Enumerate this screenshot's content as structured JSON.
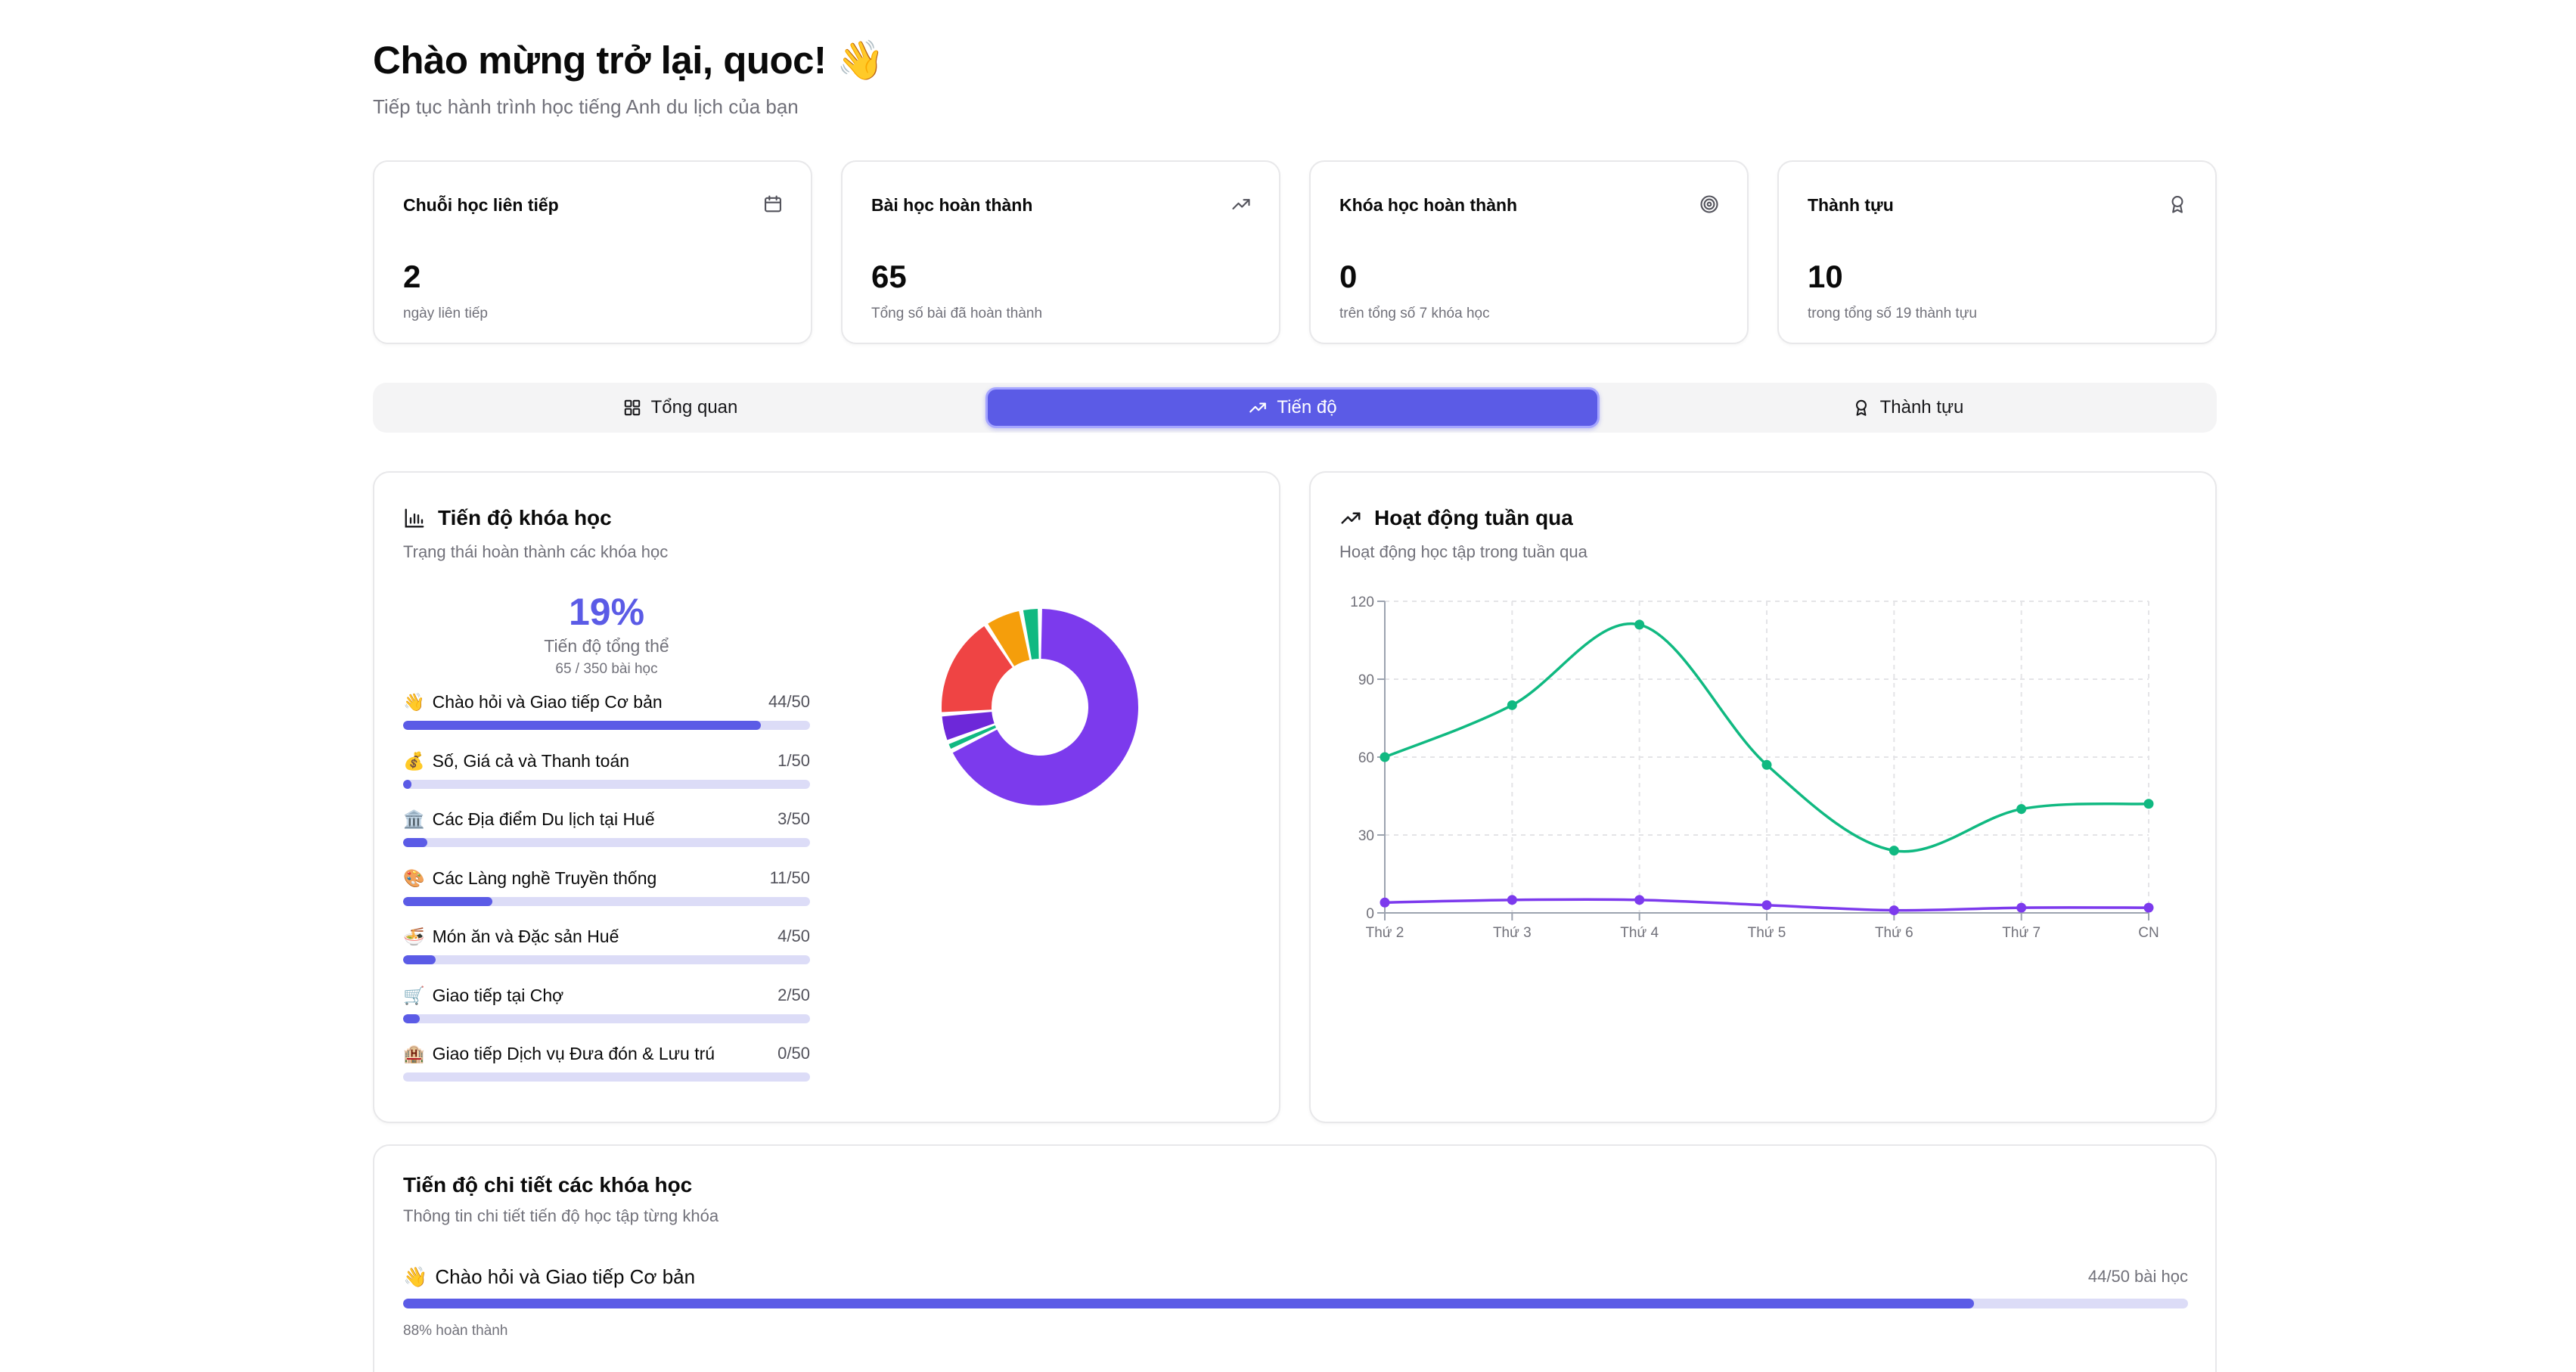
{
  "header": {
    "title": "Chào mừng trở lại, quoc! 👋",
    "subtitle": "Tiếp tục hành trình học tiếng Anh du lịch của bạn"
  },
  "stats": [
    {
      "title": "Chuỗi học liên tiếp",
      "icon": "calendar-icon",
      "value": "2",
      "note": "ngày liên tiếp"
    },
    {
      "title": "Bài học hoàn thành",
      "icon": "trending-up-icon",
      "value": "65",
      "note": "Tổng số bài đã hoàn thành"
    },
    {
      "title": "Khóa học hoàn thành",
      "icon": "target-icon",
      "value": "0",
      "note": "trên tổng số 7 khóa học"
    },
    {
      "title": "Thành tựu",
      "icon": "award-icon",
      "value": "10",
      "note": "trong tổng số 19 thành tựu"
    }
  ],
  "tabs": [
    {
      "label": "Tổng quan",
      "icon": "grid-icon",
      "active": false
    },
    {
      "label": "Tiến độ",
      "icon": "trending-up-icon",
      "active": true
    },
    {
      "label": "Thành tựu",
      "icon": "award-icon",
      "active": false
    }
  ],
  "course_progress": {
    "title": "Tiến độ khóa học",
    "subtitle": "Trạng thái hoàn thành các khóa học",
    "overall_pct": "19%",
    "overall_label": "Tiến độ tổng thể",
    "overall_count": "65 / 350 bài học",
    "courses": [
      {
        "emoji": "👋",
        "name": "Chào hỏi và Giao tiếp Cơ bản",
        "count": "44/50",
        "fraction": 0.88
      },
      {
        "emoji": "💰",
        "name": "Số, Giá cả và Thanh toán",
        "count": "1/50",
        "fraction": 0.02
      },
      {
        "emoji": "🏛️",
        "name": "Các Địa điểm Du lịch tại Huế",
        "count": "3/50",
        "fraction": 0.06
      },
      {
        "emoji": "🎨",
        "name": "Các Làng nghề Truyền thống",
        "count": "11/50",
        "fraction": 0.22
      },
      {
        "emoji": "🍜",
        "name": "Món ăn và Đặc sản Huế",
        "count": "4/50",
        "fraction": 0.08
      },
      {
        "emoji": "🛒",
        "name": "Giao tiếp tại Chợ",
        "count": "2/50",
        "fraction": 0.04
      },
      {
        "emoji": "🏨",
        "name": "Giao tiếp Dịch vụ Đưa đón & Lưu trú",
        "count": "0/50",
        "fraction": 0.0
      }
    ]
  },
  "weekly_activity": {
    "title": "Hoạt động tuần qua",
    "subtitle": "Hoạt động học tập trong tuần qua"
  },
  "chart_data": [
    {
      "type": "pie",
      "title": "",
      "categories": [
        "Chào hỏi và Giao tiếp Cơ bản",
        "Số, Giá cả và Thanh toán",
        "Các Địa điểm Du lịch tại Huế",
        "Các Làng nghề Truyền thống",
        "Món ăn và Đặc sản Huế",
        "Giao tiếp tại Chợ",
        "Giao tiếp Dịch vụ Đưa đón & Lưu trú"
      ],
      "values": [
        44,
        1,
        3,
        11,
        4,
        2,
        0
      ],
      "colors": [
        "#7c3aed",
        "#10b981",
        "#6d28d9",
        "#ef4444",
        "#f59e0b",
        "#10b981",
        "#e5e7eb"
      ]
    },
    {
      "type": "line",
      "title": "",
      "x": [
        "Thứ 2",
        "Thứ 3",
        "Thứ 4",
        "Thứ 5",
        "Thứ 6",
        "Thứ 7",
        "CN"
      ],
      "series": [
        {
          "values": [
            60,
            80,
            111,
            57,
            24,
            40,
            42
          ],
          "color": "#10b981"
        },
        {
          "values": [
            4,
            5,
            5,
            3,
            1,
            2,
            2
          ],
          "color": "#7c3aed"
        }
      ],
      "ylim": [
        0,
        120
      ],
      "yticks": [
        0,
        30,
        60,
        90,
        120
      ],
      "grid": true
    }
  ],
  "detail": {
    "title": "Tiến độ chi tiết các khóa học",
    "subtitle": "Thông tin chi tiết tiến độ học tập từng khóa",
    "rows": [
      {
        "emoji": "👋",
        "name": "Chào hỏi và Giao tiếp Cơ bản",
        "count": "44/50 bài học",
        "pct": "88% hoàn thành",
        "fraction": 0.88
      }
    ]
  }
}
